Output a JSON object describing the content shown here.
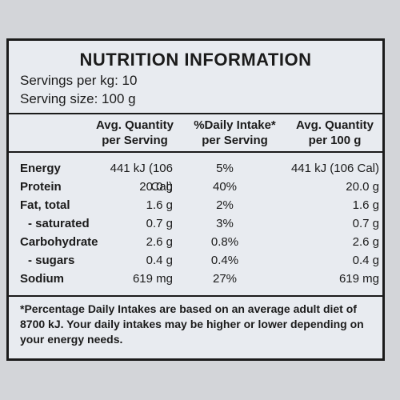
{
  "panel": {
    "title": "NUTRITION INFORMATION",
    "servings_per_kg": "Servings per kg: 10",
    "serving_size": "Serving size: 100 g"
  },
  "columns": {
    "per_serving": [
      "Avg. Quantity",
      "per Serving"
    ],
    "daily_intake": [
      "%Daily Intake*",
      "per Serving"
    ],
    "per_100g": [
      "Avg. Quantity",
      "per 100 g"
    ]
  },
  "rows": [
    {
      "name": "Energy",
      "per_serving": "441 kJ (106 Cal)",
      "daily_intake": "5%",
      "per_100g": "441 kJ (106 Cal)"
    },
    {
      "name": "Protein",
      "per_serving": "20.0 g",
      "daily_intake": "40%",
      "per_100g": "20.0 g"
    },
    {
      "name": "Fat, total",
      "per_serving": "1.6 g",
      "daily_intake": "2%",
      "per_100g": "1.6 g"
    },
    {
      "name": "- saturated",
      "per_serving": "0.7 g",
      "daily_intake": "3%",
      "per_100g": "0.7 g"
    },
    {
      "name": "Carbohydrate",
      "per_serving": "2.6 g",
      "daily_intake": "0.8%",
      "per_100g": "2.6 g"
    },
    {
      "name": "- sugars",
      "per_serving": "0.4 g",
      "daily_intake": "0.4%",
      "per_100g": "0.4 g"
    },
    {
      "name": "Sodium",
      "per_serving": "619 mg",
      "daily_intake": "27%",
      "per_100g": "619 mg"
    }
  ],
  "footnote": "*Percentage Daily Intakes are based on an average adult diet of 8700 kJ. Your daily intakes may be higher or lower depending on your energy needs."
}
